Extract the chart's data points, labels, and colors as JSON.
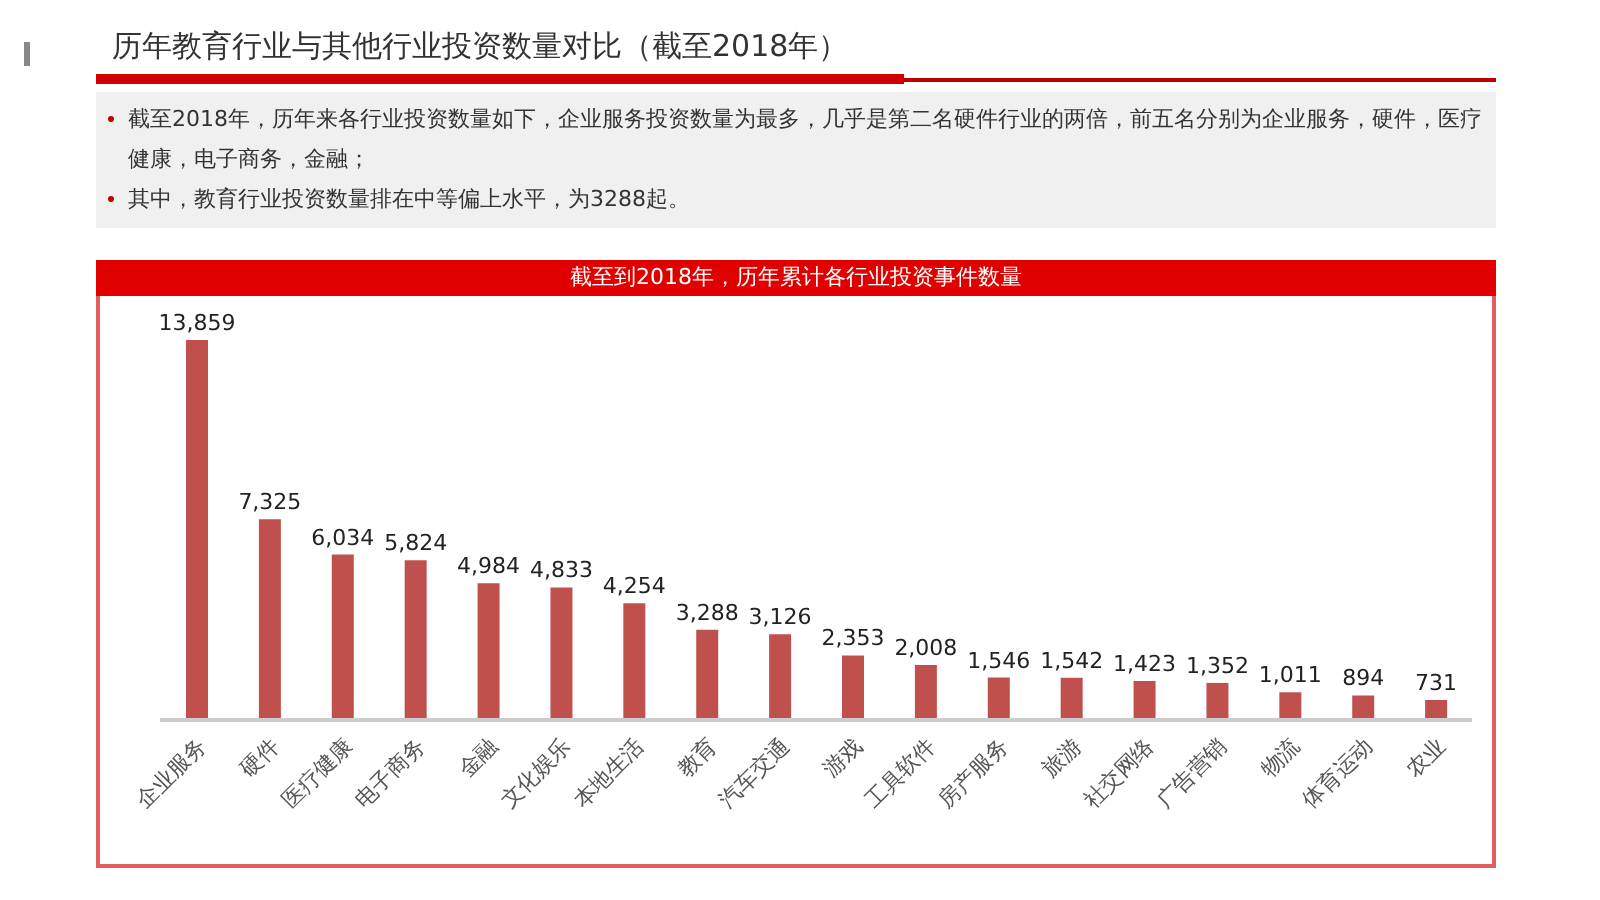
{
  "chart_data": {
    "type": "bar",
    "title": "历年教育行业与其他行业投资数量对比（截至2018年）",
    "subtitle": "截至到2018年，历年累计各行业投资事件数量",
    "annotations": [
      "截至2018年，历年来各行业投资数量如下，企业服务投资数量为最多，几乎是第二名硬件行业的两倍，前五名分别为企业服务，硬件，医疗健康，电子商务，金融；",
      "其中，教育行业投资数量排在中等偏上水平，为3288起。"
    ],
    "categories": [
      "企业服务",
      "硬件",
      "医疗健康",
      "电子商务",
      "金融",
      "文化娱乐",
      "本地生活",
      "教育",
      "汽车交通",
      "游戏",
      "工具软件",
      "房产服务",
      "旅游",
      "社交网络",
      "广告营销",
      "物流",
      "体育运动",
      "农业"
    ],
    "values": [
      13859,
      7325,
      6034,
      5824,
      4984,
      4833,
      4254,
      3288,
      3126,
      2353,
      2008,
      1546,
      1542,
      1423,
      1352,
      1011,
      894,
      731
    ],
    "value_labels": [
      "13,859",
      "7,325",
      "6,034",
      "5,824",
      "4,984",
      "4,833",
      "4,254",
      "3,288",
      "3,126",
      "2,353",
      "2,008",
      "1,546",
      "1,542",
      "1,423",
      "1,352",
      "1,011",
      "894",
      "731"
    ],
    "color": "#c0504d",
    "tick_labels": "x"
  }
}
